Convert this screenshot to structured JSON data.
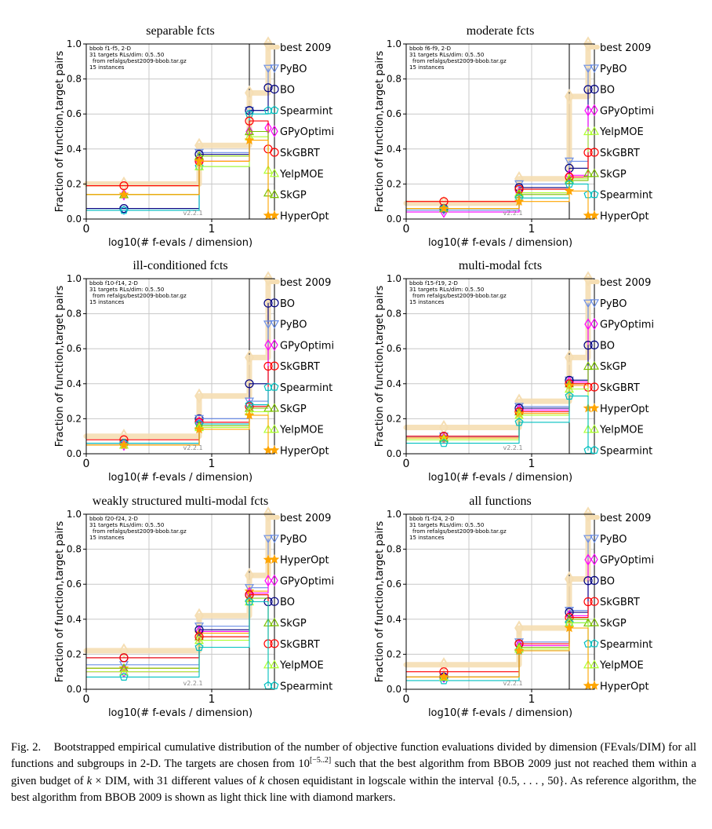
{
  "figure": {
    "caption": {
      "fig_label": "Fig. 2.",
      "part1": "Bootstrapped empirical cumulative distribution of the number of objective function evaluations divided by dimension (FEvals/DIM) for all functions and subgroups in 2-D. The targets are chosen from 10",
      "sup": "[−5..2]",
      "part2": " such that the best algorithm from BBOB 2009 just not reached them within a given budget of ",
      "k1": "k",
      "part3": " × DIM, with 31 different values of ",
      "k2": "k",
      "part4": " chosen equidistant in logscale within the interval {0.5, . . . , 50}. As reference algorithm, the best algorithm from BBOB 2009 is shown as light thick line with diamond markers."
    },
    "colors": {
      "best 2009": "#f5deb3",
      "PyBO": "#6b8fe6",
      "BO": "#000080",
      "Spearmint": "#00c0c0",
      "GPyOptimi": "#ff00ff",
      "SkGBRT": "#ff0000",
      "YelpMOE": "#adff2f",
      "SkGP": "#7cc000",
      "HyperOpt": "#ffa500"
    },
    "markers": {
      "best 2009": "diamond",
      "PyBO": "triangle-down",
      "BO": "circle",
      "Spearmint": "pentagon",
      "GPyOptimi": "diamond",
      "SkGBRT": "circle",
      "YelpMOE": "triangle-up",
      "SkGP": "triangle-up",
      "HyperOpt": "star"
    }
  },
  "chart_data": [
    {
      "type": "line",
      "title": "separable fcts",
      "xlabel": "log10(# f-evals / dimension)",
      "ylabel": "Fraction of function,target pairs",
      "xlim": [
        0,
        1.5
      ],
      "ylim": [
        0,
        1
      ],
      "xticks": [
        "0",
        "1"
      ],
      "yticks": [
        "0.0",
        "0.2",
        "0.4",
        "0.6",
        "0.8",
        "1.0"
      ],
      "grid": true,
      "info": [
        "bbob f1-f5, 2-D",
        "31 targets RLs/dim: 0.5..50",
        "from refalgs/best2009-bbob.tar.gz",
        "15 instances"
      ],
      "version": "v2.2.1",
      "legend_order": [
        "best 2009",
        "PyBO",
        "BO",
        "Spearmint",
        "GPyOptimi",
        "SkGBRT",
        "YelpMOE",
        "SkGP",
        "HyperOpt"
      ],
      "series": [
        {
          "name": "best 2009",
          "x": [
            0.3,
            0.9,
            1.3,
            1.45
          ],
          "y": [
            0.2,
            0.42,
            0.72,
            1.0
          ]
        },
        {
          "name": "PyBO",
          "x": [
            0.3,
            0.9,
            1.3,
            1.45
          ],
          "y": [
            0.05,
            0.38,
            0.62,
            0.86
          ]
        },
        {
          "name": "BO",
          "x": [
            0.3,
            0.9,
            1.3,
            1.45
          ],
          "y": [
            0.06,
            0.37,
            0.62,
            0.75
          ]
        },
        {
          "name": "Spearmint",
          "x": [
            0.3,
            0.9,
            1.3,
            1.45
          ],
          "y": [
            0.05,
            0.3,
            0.6,
            0.62
          ]
        },
        {
          "name": "GPyOptimi",
          "x": [
            0.3,
            0.9,
            1.3,
            1.45
          ],
          "y": [
            0.14,
            0.33,
            0.5,
            0.52
          ]
        },
        {
          "name": "SkGBRT",
          "x": [
            0.3,
            0.9,
            1.3,
            1.45
          ],
          "y": [
            0.19,
            0.33,
            0.56,
            0.4
          ]
        },
        {
          "name": "YelpMOE",
          "x": [
            0.3,
            0.9,
            1.3,
            1.45
          ],
          "y": [
            0.14,
            0.3,
            0.47,
            0.28
          ]
        },
        {
          "name": "SkGP",
          "x": [
            0.3,
            0.9,
            1.3,
            1.45
          ],
          "y": [
            0.14,
            0.36,
            0.5,
            0.15
          ]
        },
        {
          "name": "HyperOpt",
          "x": [
            0.3,
            0.9,
            1.3,
            1.45
          ],
          "y": [
            0.14,
            0.33,
            0.45,
            0.02
          ]
        }
      ]
    },
    {
      "type": "line",
      "title": "moderate fcts",
      "xlabel": "log10(# f-evals / dimension)",
      "ylabel": "Fraction of function,target pairs",
      "xlim": [
        0,
        1.5
      ],
      "ylim": [
        0,
        1
      ],
      "xticks": [
        "0",
        "1"
      ],
      "yticks": [
        "0.0",
        "0.2",
        "0.4",
        "0.6",
        "0.8",
        "1.0"
      ],
      "grid": true,
      "info": [
        "bbob f6-f9, 2-D",
        "31 targets RLs/dim: 0.5..50",
        "from refalgs/best2009-bbob.tar.gz",
        "15 instances"
      ],
      "version": "v2.2.1",
      "legend_order": [
        "best 2009",
        "PyBO",
        "BO",
        "GPyOptimi",
        "YelpMOE",
        "SkGBRT",
        "SkGP",
        "Spearmint",
        "HyperOpt"
      ],
      "series": [
        {
          "name": "best 2009",
          "x": [
            0.3,
            0.9,
            1.3,
            1.45
          ],
          "y": [
            0.09,
            0.23,
            0.7,
            1.0
          ]
        },
        {
          "name": "PyBO",
          "x": [
            0.3,
            0.9,
            1.3,
            1.45
          ],
          "y": [
            0.05,
            0.2,
            0.33,
            0.86
          ]
        },
        {
          "name": "BO",
          "x": [
            0.3,
            0.9,
            1.3,
            1.45
          ],
          "y": [
            0.06,
            0.18,
            0.29,
            0.74
          ]
        },
        {
          "name": "GPyOptimi",
          "x": [
            0.3,
            0.9,
            1.3,
            1.45
          ],
          "y": [
            0.04,
            0.15,
            0.25,
            0.62
          ]
        },
        {
          "name": "YelpMOE",
          "x": [
            0.3,
            0.9,
            1.3,
            1.45
          ],
          "y": [
            0.06,
            0.15,
            0.23,
            0.5
          ]
        },
        {
          "name": "SkGBRT",
          "x": [
            0.3,
            0.9,
            1.3,
            1.45
          ],
          "y": [
            0.1,
            0.17,
            0.24,
            0.38
          ]
        },
        {
          "name": "SkGP",
          "x": [
            0.3,
            0.9,
            1.3,
            1.45
          ],
          "y": [
            0.06,
            0.14,
            0.22,
            0.26
          ]
        },
        {
          "name": "Spearmint",
          "x": [
            0.3,
            0.9,
            1.3,
            1.45
          ],
          "y": [
            0.06,
            0.12,
            0.2,
            0.14
          ]
        },
        {
          "name": "HyperOpt",
          "x": [
            0.3,
            0.9,
            1.3,
            1.45
          ],
          "y": [
            0.06,
            0.1,
            0.16,
            0.02
          ]
        }
      ]
    },
    {
      "type": "line",
      "title": "ill-conditioned fcts",
      "xlabel": "log10(# f-evals / dimension)",
      "ylabel": "Fraction of function,target pairs",
      "xlim": [
        0,
        1.5
      ],
      "ylim": [
        0,
        1
      ],
      "xticks": [
        "0",
        "1"
      ],
      "yticks": [
        "0.0",
        "0.2",
        "0.4",
        "0.6",
        "0.8",
        "1.0"
      ],
      "grid": true,
      "info": [
        "bbob f10-f14, 2-D",
        "31 targets RLs/dim: 0.5..50",
        "from refalgs/best2009-bbob.tar.gz",
        "15 instances"
      ],
      "version": "v2.2.1",
      "legend_order": [
        "best 2009",
        "BO",
        "PyBO",
        "GPyOptimi",
        "SkGBRT",
        "Spearmint",
        "SkGP",
        "YelpMOE",
        "HyperOpt"
      ],
      "series": [
        {
          "name": "best 2009",
          "x": [
            0.3,
            0.9,
            1.3,
            1.45
          ],
          "y": [
            0.1,
            0.33,
            0.55,
            1.0
          ]
        },
        {
          "name": "BO",
          "x": [
            0.3,
            0.9,
            1.3,
            1.45
          ],
          "y": [
            0.06,
            0.2,
            0.4,
            0.86
          ]
        },
        {
          "name": "PyBO",
          "x": [
            0.3,
            0.9,
            1.3,
            1.45
          ],
          "y": [
            0.05,
            0.2,
            0.3,
            0.74
          ]
        },
        {
          "name": "GPyOptimi",
          "x": [
            0.3,
            0.9,
            1.3,
            1.45
          ],
          "y": [
            0.05,
            0.18,
            0.28,
            0.62
          ]
        },
        {
          "name": "SkGBRT",
          "x": [
            0.3,
            0.9,
            1.3,
            1.45
          ],
          "y": [
            0.08,
            0.18,
            0.27,
            0.5
          ]
        },
        {
          "name": "Spearmint",
          "x": [
            0.3,
            0.9,
            1.3,
            1.45
          ],
          "y": [
            0.06,
            0.17,
            0.28,
            0.38
          ]
        },
        {
          "name": "SkGP",
          "x": [
            0.3,
            0.9,
            1.3,
            1.45
          ],
          "y": [
            0.05,
            0.16,
            0.26,
            0.26
          ]
        },
        {
          "name": "YelpMOE",
          "x": [
            0.3,
            0.9,
            1.3,
            1.45
          ],
          "y": [
            0.05,
            0.15,
            0.24,
            0.14
          ]
        },
        {
          "name": "HyperOpt",
          "x": [
            0.3,
            0.9,
            1.3,
            1.45
          ],
          "y": [
            0.05,
            0.14,
            0.22,
            0.02
          ]
        }
      ]
    },
    {
      "type": "line",
      "title": "multi-modal fcts",
      "xlabel": "log10(# f-evals / dimension)",
      "ylabel": "Fraction of function,target pairs",
      "xlim": [
        0,
        1.5
      ],
      "ylim": [
        0,
        1
      ],
      "xticks": [
        "0",
        "1"
      ],
      "yticks": [
        "0.0",
        "0.2",
        "0.4",
        "0.6",
        "0.8",
        "1.0"
      ],
      "grid": true,
      "info": [
        "bbob f15-f19, 2-D",
        "31 targets RLs/dim: 0.5..50",
        "from refalgs/best2009-bbob.tar.gz",
        "15 instances"
      ],
      "version": "v2.2.1",
      "legend_order": [
        "best 2009",
        "PyBO",
        "GPyOptimi",
        "BO",
        "SkGP",
        "SkGBRT",
        "HyperOpt",
        "YelpMOE",
        "Spearmint"
      ],
      "series": [
        {
          "name": "best 2009",
          "x": [
            0.3,
            0.9,
            1.3,
            1.45
          ],
          "y": [
            0.15,
            0.3,
            0.55,
            1.0
          ]
        },
        {
          "name": "PyBO",
          "x": [
            0.3,
            0.9,
            1.3,
            1.45
          ],
          "y": [
            0.1,
            0.27,
            0.42,
            0.86
          ]
        },
        {
          "name": "GPyOptimi",
          "x": [
            0.3,
            0.9,
            1.3,
            1.45
          ],
          "y": [
            0.09,
            0.25,
            0.41,
            0.74
          ]
        },
        {
          "name": "BO",
          "x": [
            0.3,
            0.9,
            1.3,
            1.45
          ],
          "y": [
            0.1,
            0.26,
            0.42,
            0.62
          ]
        },
        {
          "name": "SkGP",
          "x": [
            0.3,
            0.9,
            1.3,
            1.45
          ],
          "y": [
            0.09,
            0.24,
            0.4,
            0.5
          ]
        },
        {
          "name": "SkGBRT",
          "x": [
            0.3,
            0.9,
            1.3,
            1.45
          ],
          "y": [
            0.1,
            0.24,
            0.4,
            0.38
          ]
        },
        {
          "name": "HyperOpt",
          "x": [
            0.3,
            0.9,
            1.3,
            1.45
          ],
          "y": [
            0.09,
            0.23,
            0.39,
            0.26
          ]
        },
        {
          "name": "YelpMOE",
          "x": [
            0.3,
            0.9,
            1.3,
            1.45
          ],
          "y": [
            0.08,
            0.22,
            0.37,
            0.14
          ]
        },
        {
          "name": "Spearmint",
          "x": [
            0.3,
            0.9,
            1.3,
            1.45
          ],
          "y": [
            0.06,
            0.18,
            0.33,
            0.02
          ]
        }
      ]
    },
    {
      "type": "line",
      "title": "weakly structured multi-modal fcts",
      "xlabel": "log10(# f-evals / dimension)",
      "ylabel": "Fraction of function,target pairs",
      "xlim": [
        0,
        1.5
      ],
      "ylim": [
        0,
        1
      ],
      "xticks": [
        "0",
        "1"
      ],
      "yticks": [
        "0.0",
        "0.2",
        "0.4",
        "0.6",
        "0.8",
        "1.0"
      ],
      "grid": true,
      "info": [
        "bbob f20-f24, 2-D",
        "31 targets RLs/dim: 0.5..50",
        "from refalgs/best2009-bbob.tar.gz",
        "15 instances"
      ],
      "version": "v2.2.1",
      "legend_order": [
        "best 2009",
        "PyBO",
        "HyperOpt",
        "GPyOptimi",
        "BO",
        "SkGP",
        "SkGBRT",
        "YelpMOE",
        "Spearmint"
      ],
      "series": [
        {
          "name": "best 2009",
          "x": [
            0.3,
            0.9,
            1.3,
            1.45
          ],
          "y": [
            0.22,
            0.42,
            0.65,
            1.0
          ]
        },
        {
          "name": "PyBO",
          "x": [
            0.3,
            0.9,
            1.3,
            1.45
          ],
          "y": [
            0.14,
            0.36,
            0.58,
            0.86
          ]
        },
        {
          "name": "HyperOpt",
          "x": [
            0.3,
            0.9,
            1.3,
            1.45
          ],
          "y": [
            0.12,
            0.32,
            0.56,
            0.74
          ]
        },
        {
          "name": "GPyOptimi",
          "x": [
            0.3,
            0.9,
            1.3,
            1.45
          ],
          "y": [
            0.1,
            0.33,
            0.55,
            0.62
          ]
        },
        {
          "name": "BO",
          "x": [
            0.3,
            0.9,
            1.3,
            1.45
          ],
          "y": [
            0.18,
            0.34,
            0.54,
            0.5
          ]
        },
        {
          "name": "SkGP",
          "x": [
            0.3,
            0.9,
            1.3,
            1.45
          ],
          "y": [
            0.12,
            0.3,
            0.52,
            0.38
          ]
        },
        {
          "name": "SkGBRT",
          "x": [
            0.3,
            0.9,
            1.3,
            1.45
          ],
          "y": [
            0.18,
            0.3,
            0.54,
            0.26
          ]
        },
        {
          "name": "YelpMOE",
          "x": [
            0.3,
            0.9,
            1.3,
            1.45
          ],
          "y": [
            0.1,
            0.28,
            0.5,
            0.14
          ]
        },
        {
          "name": "Spearmint",
          "x": [
            0.3,
            0.9,
            1.3,
            1.45
          ],
          "y": [
            0.07,
            0.24,
            0.5,
            0.02
          ]
        }
      ]
    },
    {
      "type": "line",
      "title": "all functions",
      "xlabel": "log10(# f-evals / dimension)",
      "ylabel": "Fraction of function,target pairs",
      "xlim": [
        0,
        1.5
      ],
      "ylim": [
        0,
        1
      ],
      "xticks": [
        "0",
        "1"
      ],
      "yticks": [
        "0.0",
        "0.2",
        "0.4",
        "0.6",
        "0.8",
        "1.0"
      ],
      "grid": true,
      "info": [
        "bbob f1-f24, 2-D",
        "31 targets RLs/dim: 0.5..50",
        "from refalgs/best2009-bbob.tar.gz",
        "15 instances"
      ],
      "version": "v2.2.1",
      "legend_order": [
        "best 2009",
        "PyBO",
        "GPyOptimi",
        "BO",
        "SkGBRT",
        "SkGP",
        "Spearmint",
        "YelpMOE",
        "HyperOpt"
      ],
      "series": [
        {
          "name": "best 2009",
          "x": [
            0.3,
            0.9,
            1.3,
            1.45
          ],
          "y": [
            0.14,
            0.35,
            0.63,
            1.0
          ]
        },
        {
          "name": "PyBO",
          "x": [
            0.3,
            0.9,
            1.3,
            1.45
          ],
          "y": [
            0.07,
            0.27,
            0.45,
            0.86
          ]
        },
        {
          "name": "GPyOptimi",
          "x": [
            0.3,
            0.9,
            1.3,
            1.45
          ],
          "y": [
            0.07,
            0.25,
            0.42,
            0.74
          ]
        },
        {
          "name": "BO",
          "x": [
            0.3,
            0.9,
            1.3,
            1.45
          ],
          "y": [
            0.07,
            0.26,
            0.44,
            0.62
          ]
        },
        {
          "name": "SkGBRT",
          "x": [
            0.3,
            0.9,
            1.3,
            1.45
          ],
          "y": [
            0.1,
            0.26,
            0.41,
            0.5
          ]
        },
        {
          "name": "SkGP",
          "x": [
            0.3,
            0.9,
            1.3,
            1.45
          ],
          "y": [
            0.07,
            0.24,
            0.4,
            0.38
          ]
        },
        {
          "name": "Spearmint",
          "x": [
            0.3,
            0.9,
            1.3,
            1.45
          ],
          "y": [
            0.05,
            0.22,
            0.38,
            0.26
          ]
        },
        {
          "name": "YelpMOE",
          "x": [
            0.3,
            0.9,
            1.3,
            1.45
          ],
          "y": [
            0.07,
            0.23,
            0.38,
            0.14
          ]
        },
        {
          "name": "HyperOpt",
          "x": [
            0.3,
            0.9,
            1.3,
            1.45
          ],
          "y": [
            0.07,
            0.22,
            0.35,
            0.02
          ]
        }
      ]
    }
  ]
}
